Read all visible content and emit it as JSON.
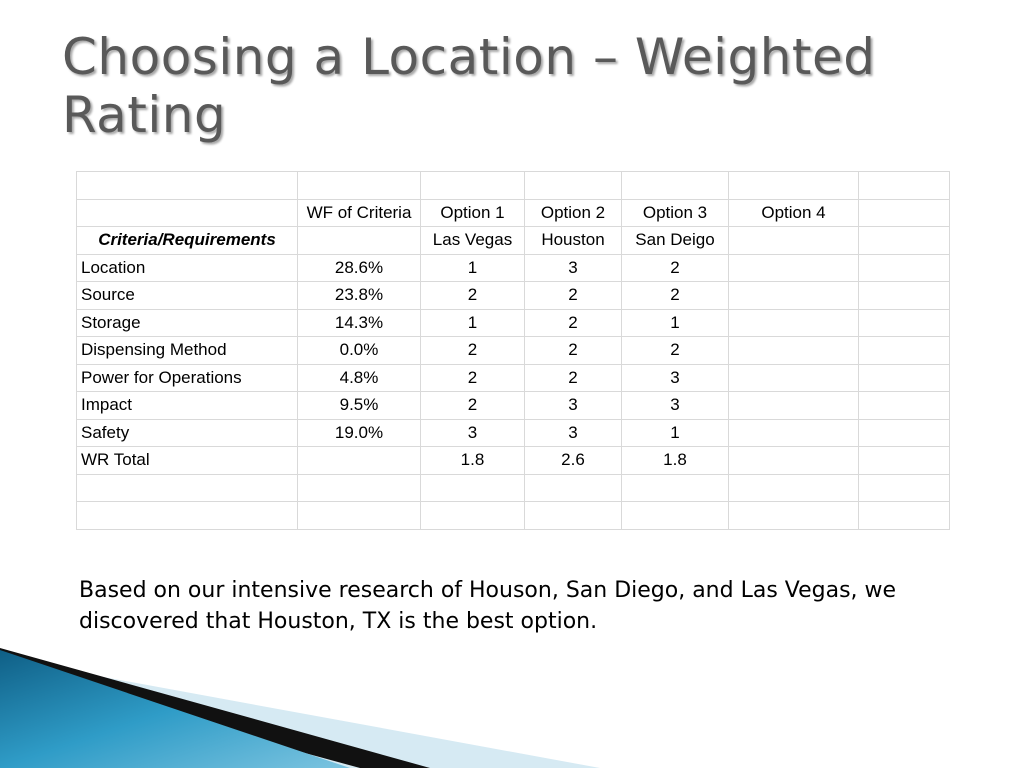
{
  "slide": {
    "title": "Choosing a Location – Weighted Rating",
    "summary": "Based on our intensive research of Houson, San Diego, and Las Vegas, we discovered that Houston, TX is the best option."
  },
  "table": {
    "header": {
      "wf_label": "WF of Criteria",
      "option1": "Option 1",
      "option2": "Option 2",
      "option3": "Option 3",
      "option4": "Option 4"
    },
    "subheader": {
      "criteria_label": "Criteria/Requirements",
      "option1_city": "Las Vegas",
      "option2_city": "Houston",
      "option3_city": "San Deigo"
    },
    "rows": [
      {
        "criteria": "Location",
        "wf": "28.6%",
        "o1": "1",
        "o2": "3",
        "o3": "2"
      },
      {
        "criteria": "Source",
        "wf": "23.8%",
        "o1": "2",
        "o2": "2",
        "o3": "2"
      },
      {
        "criteria": "Storage",
        "wf": "14.3%",
        "o1": "1",
        "o2": "2",
        "o3": "1"
      },
      {
        "criteria": "Dispensing Method",
        "wf": "0.0%",
        "o1": "2",
        "o2": "2",
        "o3": "2"
      },
      {
        "criteria": "Power for Operations",
        "wf": "4.8%",
        "o1": "2",
        "o2": "2",
        "o3": "3"
      },
      {
        "criteria": "Impact",
        "wf": "9.5%",
        "o1": "2",
        "o2": "3",
        "o3": "3"
      },
      {
        "criteria": "Safety",
        "wf": "19.0%",
        "o1": "3",
        "o2": "3",
        "o3": "1"
      }
    ],
    "total": {
      "label": "WR Total",
      "o1": "1.8",
      "o2": "2.6",
      "o3": "1.8"
    }
  },
  "theme": {
    "title_color": "#595959",
    "accent_dark_blue": "#1b6e96",
    "accent_light_blue": "#cfe6f0"
  }
}
